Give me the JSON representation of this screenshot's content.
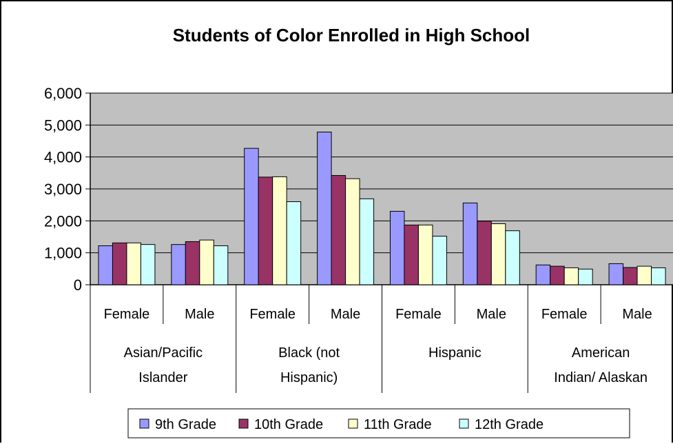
{
  "chart_data": {
    "type": "bar",
    "title": "Students of Color Enrolled in High School",
    "xlabel": "",
    "ylabel": "",
    "ylim": [
      0,
      6000
    ],
    "yticks": [
      "0",
      "1,000",
      "2,000",
      "3,000",
      "4,000",
      "5,000",
      "6,000"
    ],
    "grid": true,
    "legend_position": "bottom",
    "groups": [
      {
        "label_lines": [
          "Asian/Pacific",
          "Islander"
        ],
        "subcategories": [
          "Female",
          "Male"
        ]
      },
      {
        "label_lines": [
          "Black (not",
          "Hispanic)"
        ],
        "subcategories": [
          "Female",
          "Male"
        ]
      },
      {
        "label_lines": [
          "Hispanic"
        ],
        "subcategories": [
          "Female",
          "Male"
        ]
      },
      {
        "label_lines": [
          "American",
          "Indian/ Alaskan"
        ],
        "subcategories": [
          "Female",
          "Male"
        ]
      }
    ],
    "categories": [
      "Asian/Pacific Islander - Female",
      "Asian/Pacific Islander - Male",
      "Black (not Hispanic) - Female",
      "Black (not Hispanic) - Male",
      "Hispanic - Female",
      "Hispanic - Male",
      "American Indian/ Alaskan - Female",
      "American Indian/ Alaskan - Male"
    ],
    "series": [
      {
        "name": "9th Grade",
        "color": "#9999FF",
        "values": [
          1220,
          1260,
          4270,
          4780,
          2300,
          2560,
          620,
          660
        ]
      },
      {
        "name": "10th Grade",
        "color": "#993366",
        "values": [
          1310,
          1350,
          3370,
          3420,
          1870,
          1990,
          580,
          540
        ]
      },
      {
        "name": "11th Grade",
        "color": "#FFFFCC",
        "values": [
          1310,
          1400,
          3380,
          3320,
          1870,
          1910,
          530,
          580
        ]
      },
      {
        "name": "12th Grade",
        "color": "#CCFFFF",
        "values": [
          1260,
          1220,
          2600,
          2690,
          1520,
          1690,
          490,
          530
        ]
      }
    ],
    "plot_background": "#C0C0C0"
  }
}
